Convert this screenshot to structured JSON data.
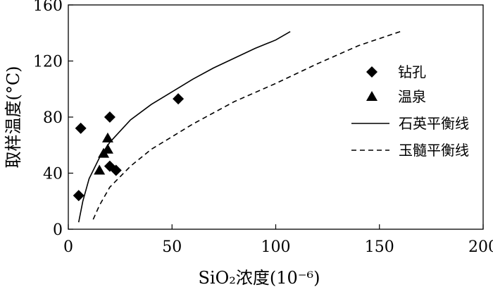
{
  "chart_data": {
    "type": "scatter",
    "title": "",
    "xlabel": "SiO₂浓度(10⁻⁶)",
    "ylabel": "取样温度(°C)",
    "xlim": [
      0,
      200
    ],
    "ylim": [
      0,
      160
    ],
    "xticks": [
      0,
      50,
      100,
      150,
      200
    ],
    "yticks": [
      0,
      40,
      80,
      120,
      160
    ],
    "grid": false,
    "legend_position": "right",
    "series": [
      {
        "name": "钻孔",
        "kind": "scatter",
        "marker": "diamond",
        "color": "#000000",
        "points": [
          [
            5,
            24
          ],
          [
            6,
            72
          ],
          [
            20,
            80
          ],
          [
            20,
            45
          ],
          [
            23,
            42
          ],
          [
            53,
            93
          ]
        ]
      },
      {
        "name": "温泉",
        "kind": "scatter",
        "marker": "triangle",
        "color": "#000000",
        "points": [
          [
            15,
            42
          ],
          [
            17,
            54
          ],
          [
            19,
            57
          ],
          [
            19,
            65
          ]
        ]
      },
      {
        "name": "石英平衡线",
        "kind": "line",
        "style": "solid",
        "color": "#000000",
        "points": [
          [
            5,
            5
          ],
          [
            7,
            20
          ],
          [
            10,
            36
          ],
          [
            15,
            51
          ],
          [
            20,
            62
          ],
          [
            30,
            78
          ],
          [
            40,
            89
          ],
          [
            50,
            98
          ],
          [
            60,
            107
          ],
          [
            70,
            115
          ],
          [
            80,
            122
          ],
          [
            90,
            129
          ],
          [
            100,
            135
          ],
          [
            107,
            141
          ]
        ]
      },
      {
        "name": "玉髓平衡线",
        "kind": "line",
        "style": "dashed",
        "color": "#000000",
        "points": [
          [
            12,
            7
          ],
          [
            15,
            17
          ],
          [
            20,
            30
          ],
          [
            30,
            45
          ],
          [
            40,
            57
          ],
          [
            50,
            66
          ],
          [
            60,
            75
          ],
          [
            80,
            91
          ],
          [
            100,
            104
          ],
          [
            120,
            118
          ],
          [
            140,
            131
          ],
          [
            160,
            141
          ]
        ]
      }
    ]
  }
}
